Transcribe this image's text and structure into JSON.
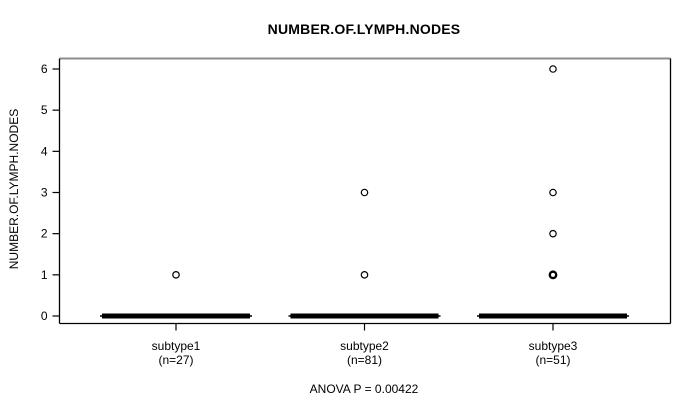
{
  "title": "NUMBER.OF.LYMPH.NODES",
  "y_axis": {
    "label": "NUMBER.OF.LYMPH.NODES",
    "tick_labels": [
      "0",
      "1",
      "2",
      "3",
      "4",
      "5",
      "6"
    ]
  },
  "x_axis": {
    "groups": [
      {
        "label": "subtype1",
        "sublabel": "(n=27)"
      },
      {
        "label": "subtype2",
        "sublabel": "(n=81)"
      },
      {
        "label": "subtype3",
        "sublabel": "(n=51)"
      }
    ]
  },
  "caption": "ANOVA P = 0.00422",
  "colors": {
    "foreground": "#000000",
    "background": "#ffffff",
    "frame_top": "#8c8c8c"
  },
  "chart_data": {
    "type": "boxplot",
    "title": "NUMBER.OF.LYMPH.NODES",
    "ylabel": "NUMBER.OF.LYMPH.NODES",
    "caption": "ANOVA P = 0.00422",
    "anova_p": 0.00422,
    "ylim": [
      0,
      6
    ],
    "yticks": [
      0,
      1,
      2,
      3,
      4,
      5,
      6
    ],
    "grid": false,
    "legend": false,
    "categories": [
      "subtype1",
      "subtype2",
      "subtype3"
    ],
    "groups": [
      {
        "name": "subtype1",
        "n": 27,
        "median": 0,
        "q1": 0,
        "q3": 0,
        "whisker_low": 0,
        "whisker_high": 0,
        "outliers": [
          {
            "value": 1,
            "overplotted": false
          }
        ]
      },
      {
        "name": "subtype2",
        "n": 81,
        "median": 0,
        "q1": 0,
        "q3": 0,
        "whisker_low": 0,
        "whisker_high": 0,
        "outliers": [
          {
            "value": 3,
            "overplotted": false
          },
          {
            "value": 1,
            "overplotted": false
          }
        ]
      },
      {
        "name": "subtype3",
        "n": 51,
        "median": 0,
        "q1": 0,
        "q3": 0,
        "whisker_low": 0,
        "whisker_high": 0,
        "outliers": [
          {
            "value": 6,
            "overplotted": false
          },
          {
            "value": 3,
            "overplotted": false
          },
          {
            "value": 2,
            "overplotted": false
          },
          {
            "value": 1,
            "overplotted": true
          }
        ]
      }
    ]
  }
}
